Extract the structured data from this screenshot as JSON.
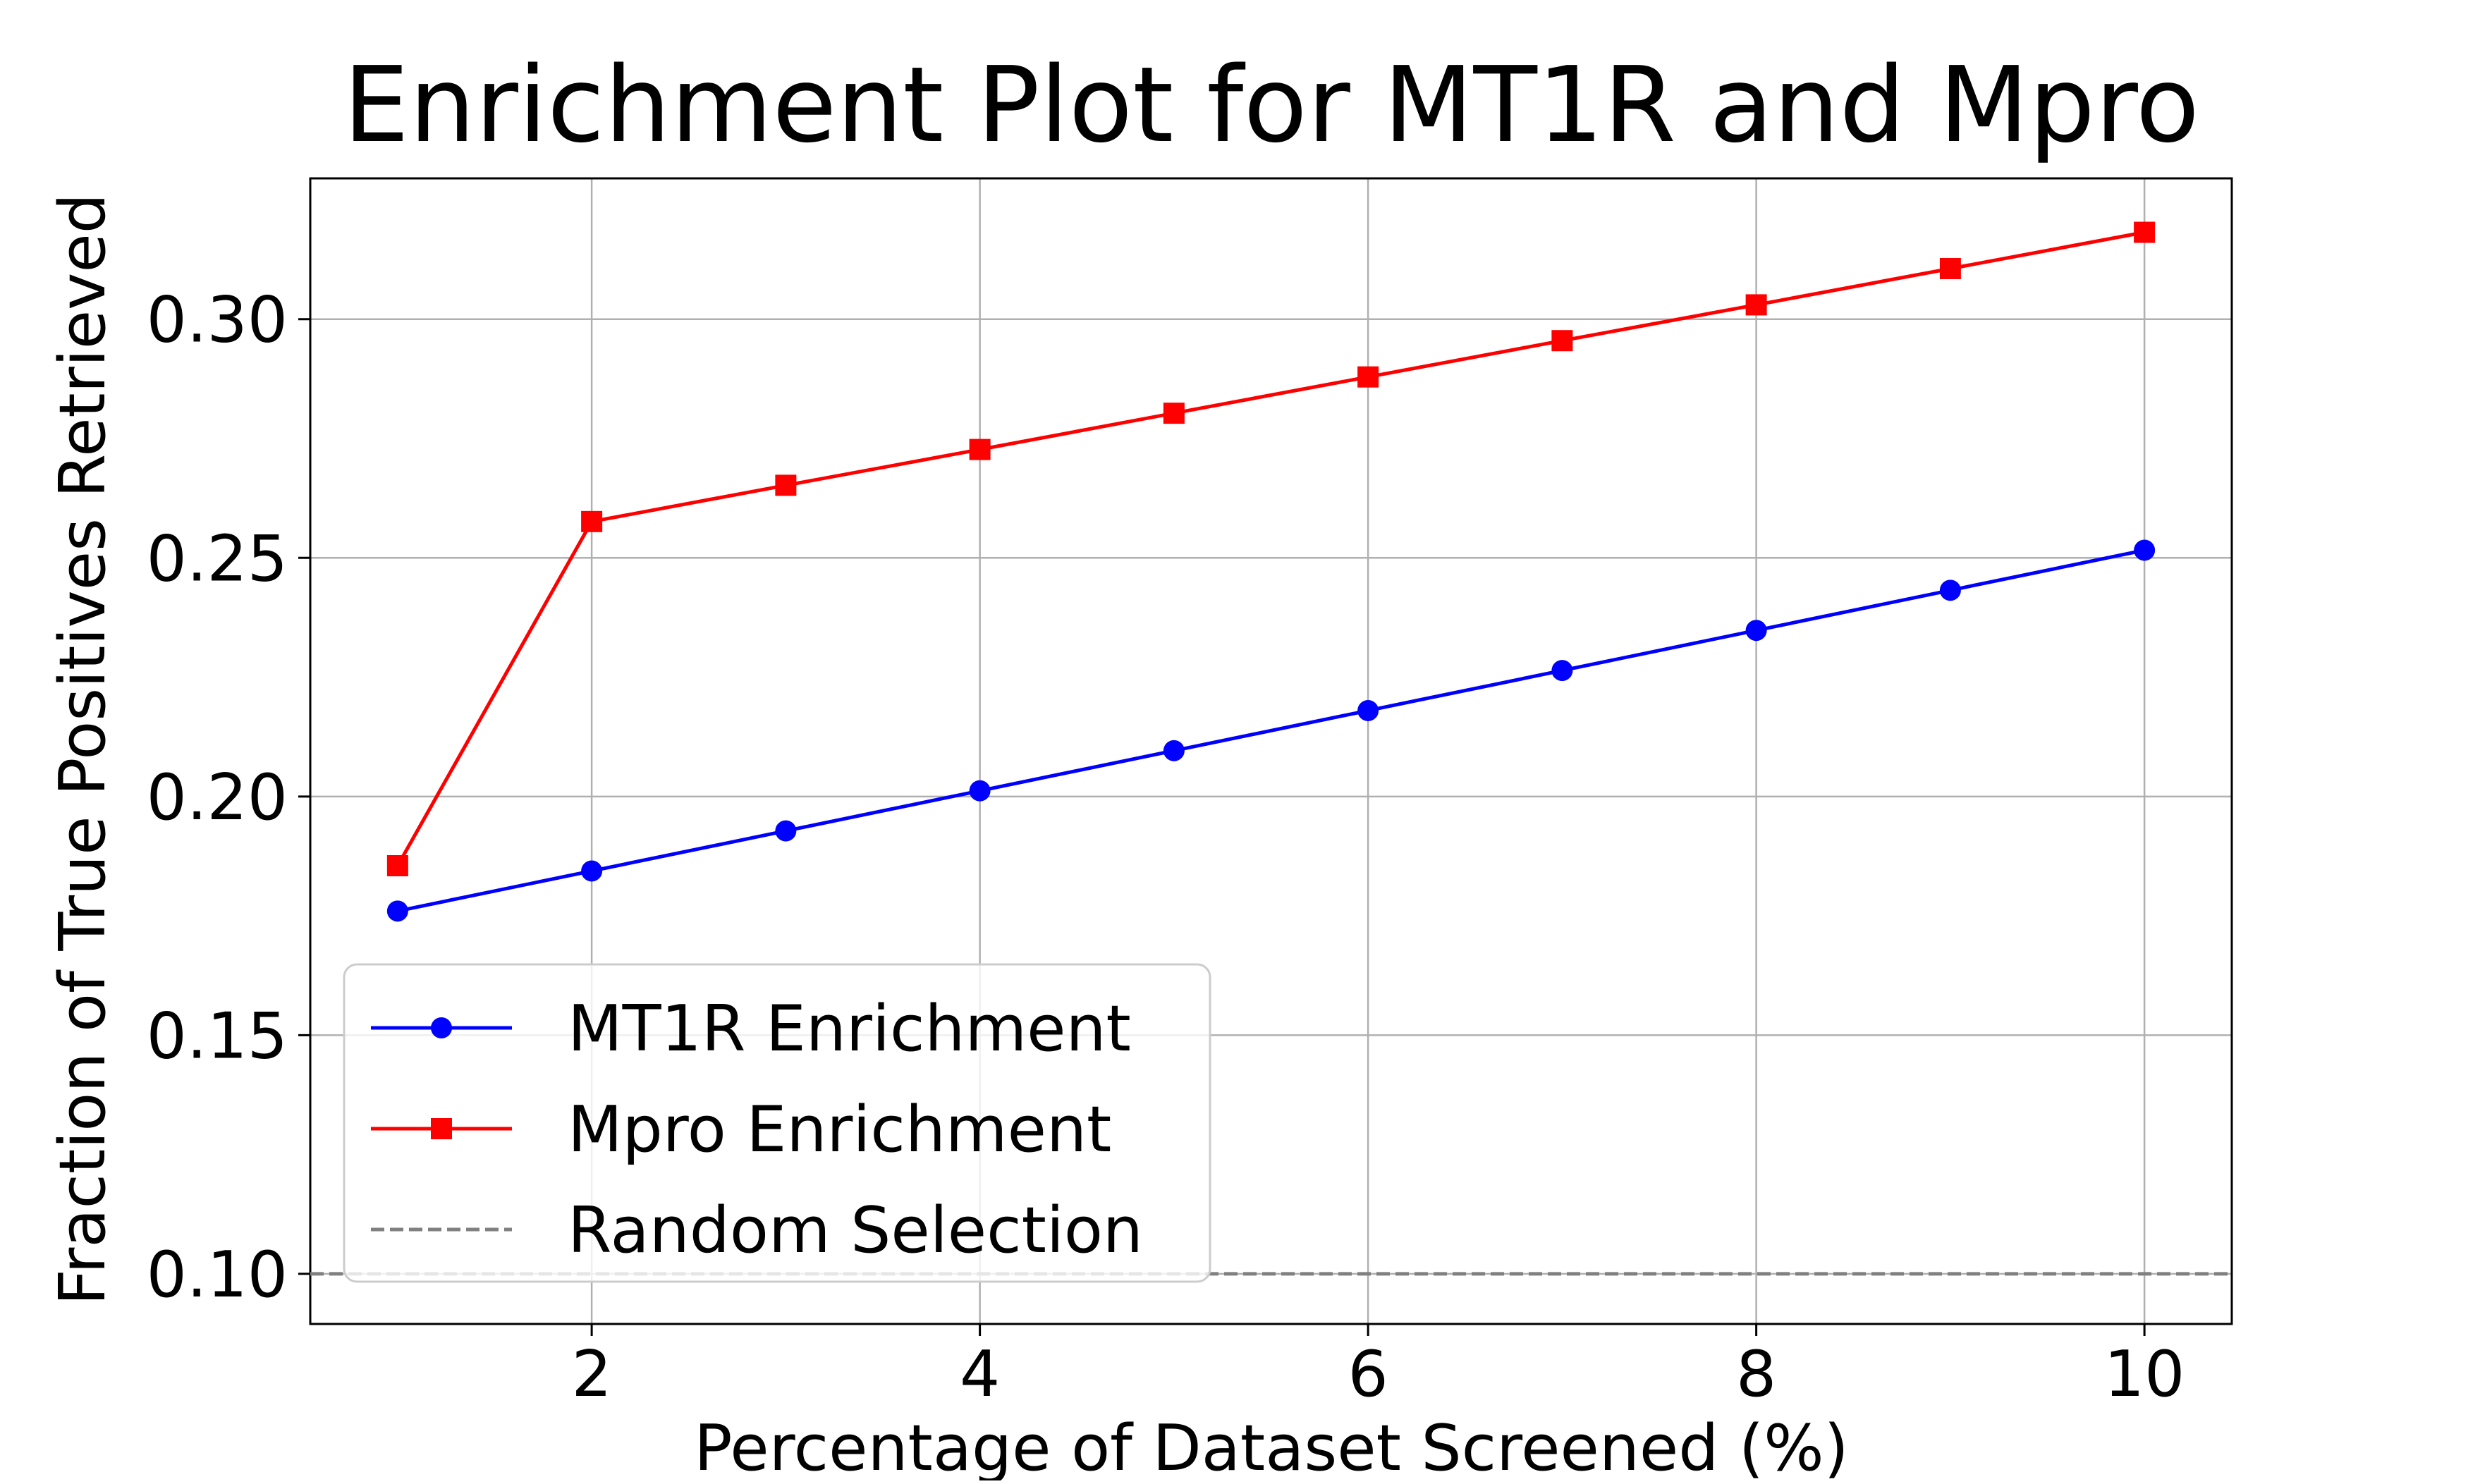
{
  "chart_data": {
    "type": "line",
    "title": "Enrichment Plot for MT1R and Mpro",
    "xlabel": "Percentage of Dataset Screened (%)",
    "ylabel": "Fraction of True Positives Retrieved",
    "x": [
      1,
      2,
      3,
      4,
      5,
      6,
      7,
      8,
      9,
      10
    ],
    "xlim": [
      0.55,
      10.45
    ],
    "ylim": [
      0.0895,
      0.3295
    ],
    "xticks": [
      2,
      4,
      6,
      8,
      10
    ],
    "xtick_labels": [
      "2",
      "4",
      "6",
      "8",
      "10"
    ],
    "yticks": [
      0.1,
      0.15,
      0.2,
      0.25,
      0.3
    ],
    "ytick_labels": [
      "0.10",
      "0.15",
      "0.20",
      "0.25",
      "0.30"
    ],
    "grid": true,
    "legend_position": "lower-left",
    "series": [
      {
        "name": "MT1R Enrichment",
        "color": "#0000ff",
        "marker": "circle",
        "line_style": "solid",
        "values": [
          0.176,
          0.1844,
          0.1928,
          0.2012,
          0.2096,
          0.218,
          0.2264,
          0.2348,
          0.2432,
          0.2516
        ]
      },
      {
        "name": "Mpro Enrichment",
        "color": "#ff0000",
        "marker": "square",
        "line_style": "solid",
        "values": [
          0.1855,
          0.2576,
          0.2652,
          0.2727,
          0.2803,
          0.2879,
          0.2955,
          0.303,
          0.3106,
          0.3182
        ]
      },
      {
        "name": "Random Selection",
        "color": "#808080",
        "marker": "none",
        "line_style": "dashed",
        "values": [
          0.1,
          0.1,
          0.1,
          0.1,
          0.1,
          0.1,
          0.1,
          0.1,
          0.1,
          0.1
        ]
      }
    ]
  }
}
